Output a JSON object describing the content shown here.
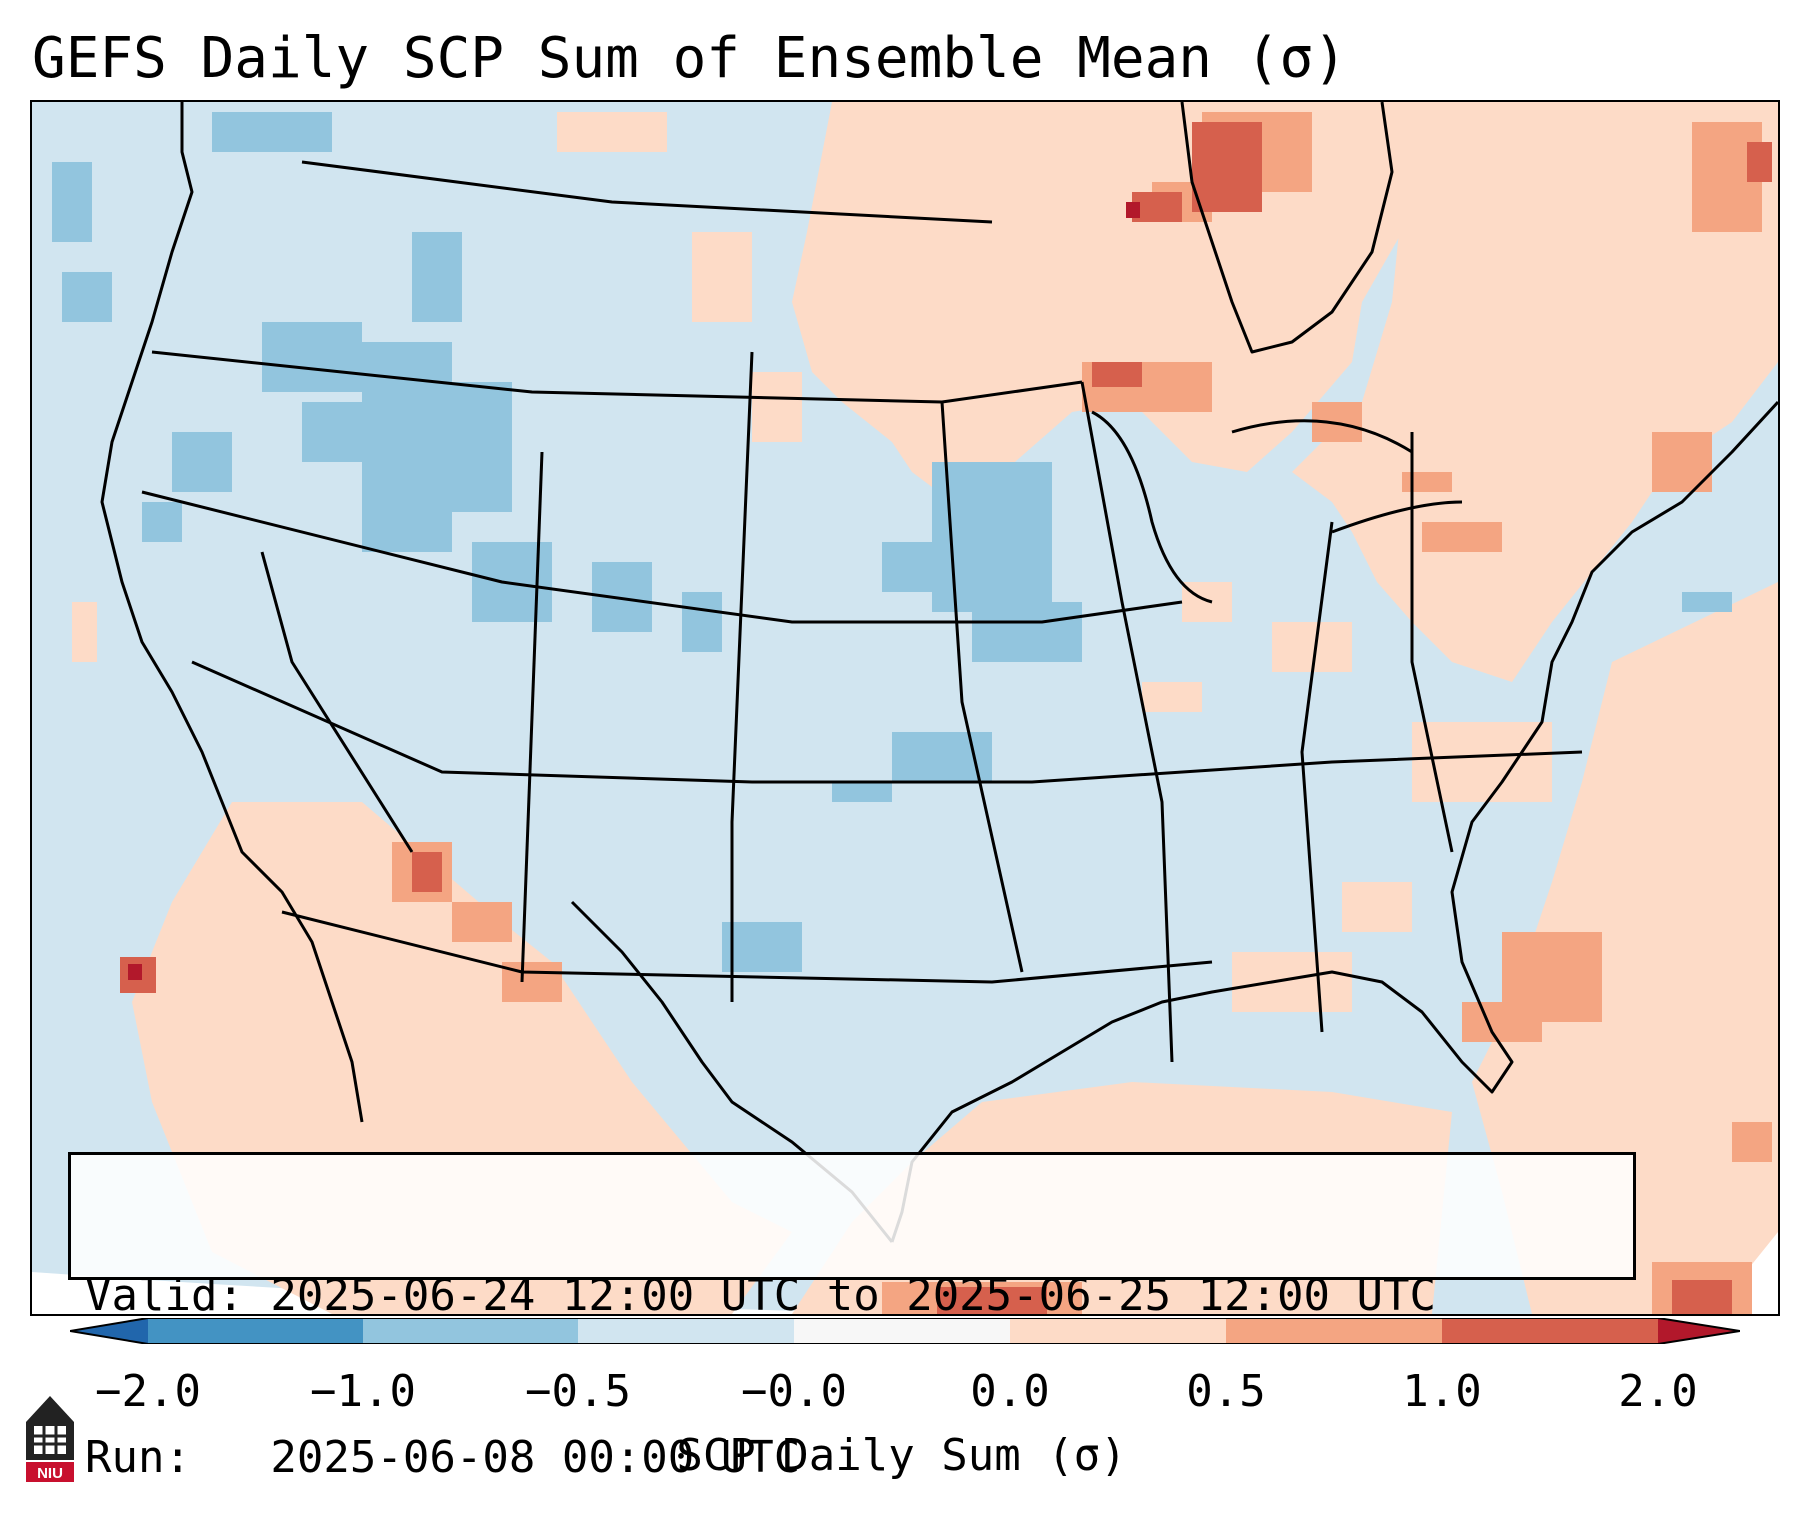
{
  "title": "GEFS Daily SCP Sum of Ensemble Mean (σ)",
  "info": {
    "valid": "Valid: 2025-06-24 12:00 UTC to 2025-06-25 12:00 UTC",
    "run": "Run:   2025-06-08 00:00 UTC"
  },
  "colorbar": {
    "label": "SCP Daily Sum (σ)",
    "ticks": [
      "−2.0",
      "−1.0",
      "−0.5",
      "−0.0",
      "0.0",
      "0.5",
      "1.0",
      "2.0"
    ],
    "bins": [
      {
        "range": "< -2.0",
        "color": "#2166ac"
      },
      {
        "range": "-2.0 to -1.0",
        "color": "#4393c3"
      },
      {
        "range": "-1.0 to -0.5",
        "color": "#92c5de"
      },
      {
        "range": "-0.5 to -0.0",
        "color": "#d1e5f0"
      },
      {
        "range": "-0.0 to 0.0",
        "color": "#f7f7f7"
      },
      {
        "range": "0.0 to 0.5",
        "color": "#fddbc7"
      },
      {
        "range": "0.5 to 1.0",
        "color": "#f4a582"
      },
      {
        "range": "1.0 to 2.0",
        "color": "#d6604d"
      },
      {
        "range": "> 2.0",
        "color": "#b2182b"
      }
    ]
  },
  "logo": {
    "text": "NIU",
    "description": "Northern Illinois University logo"
  },
  "map_regions": [
    {
      "region": "Upper Midwest / Great Lakes / Ontario",
      "anomaly": "0.0 to 1.0"
    },
    {
      "region": "Northern Wisconsin / Upper Michigan",
      "anomaly": "0.5 to 2.0"
    },
    {
      "region": "Northeast US / New England",
      "anomaly": "0.0 to 1.0"
    },
    {
      "region": "Western Atlantic",
      "anomaly": "0.0 to 1.0"
    },
    {
      "region": "Arizona / northwest Mexico",
      "anomaly": "0.0 to 1.0"
    },
    {
      "region": "Idaho / Oregon / Montana",
      "anomaly": "-1.0 to -0.5"
    },
    {
      "region": "Iowa / northern Missouri",
      "anomaly": "-1.0 to -0.5"
    },
    {
      "region": "Most of the contiguous US",
      "anomaly": "-0.5 to 0.0"
    }
  ]
}
